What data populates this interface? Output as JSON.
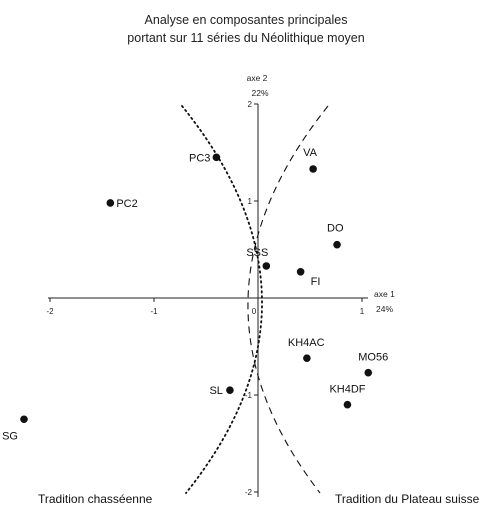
{
  "chart_data": {
    "type": "scatter",
    "title_line1": "Analyse en composantes principales",
    "title_line2": "portant sur 11 séries du Néolithique moyen",
    "x_axis": {
      "name": "axe 1",
      "variance": "24%",
      "ticks": [
        "-2",
        "-1",
        "0",
        "1"
      ],
      "range": [
        -2.3,
        1.3
      ]
    },
    "y_axis": {
      "name": "axe 2",
      "variance": "22%",
      "ticks": [
        "2",
        "1",
        "-1",
        "-2"
      ],
      "range": [
        -2.05,
        2.05
      ]
    },
    "points": [
      {
        "label": "PC3",
        "x": -0.4,
        "y": 1.45
      },
      {
        "label": "PC2",
        "x": -1.42,
        "y": 0.98
      },
      {
        "label": "VA",
        "x": 0.53,
        "y": 1.33
      },
      {
        "label": "DO",
        "x": 0.76,
        "y": 0.55
      },
      {
        "label": "SSS",
        "x": 0.08,
        "y": 0.33
      },
      {
        "label": "FI",
        "x": 0.41,
        "y": 0.27
      },
      {
        "label": "KH4AC",
        "x": 0.47,
        "y": -0.62
      },
      {
        "label": "MO56",
        "x": 1.06,
        "y": -0.77
      },
      {
        "label": "KH4DF",
        "x": 0.86,
        "y": -1.1
      },
      {
        "label": "SL",
        "x": -0.27,
        "y": -0.95
      },
      {
        "label": "SG",
        "x": -2.25,
        "y": -1.25
      }
    ],
    "curves": [
      {
        "label": "Tradition chasséenne",
        "style": "dotted"
      },
      {
        "label": "Tradition du Plateau suisse",
        "style": "dashed"
      }
    ],
    "grid": false,
    "legend": "none"
  }
}
